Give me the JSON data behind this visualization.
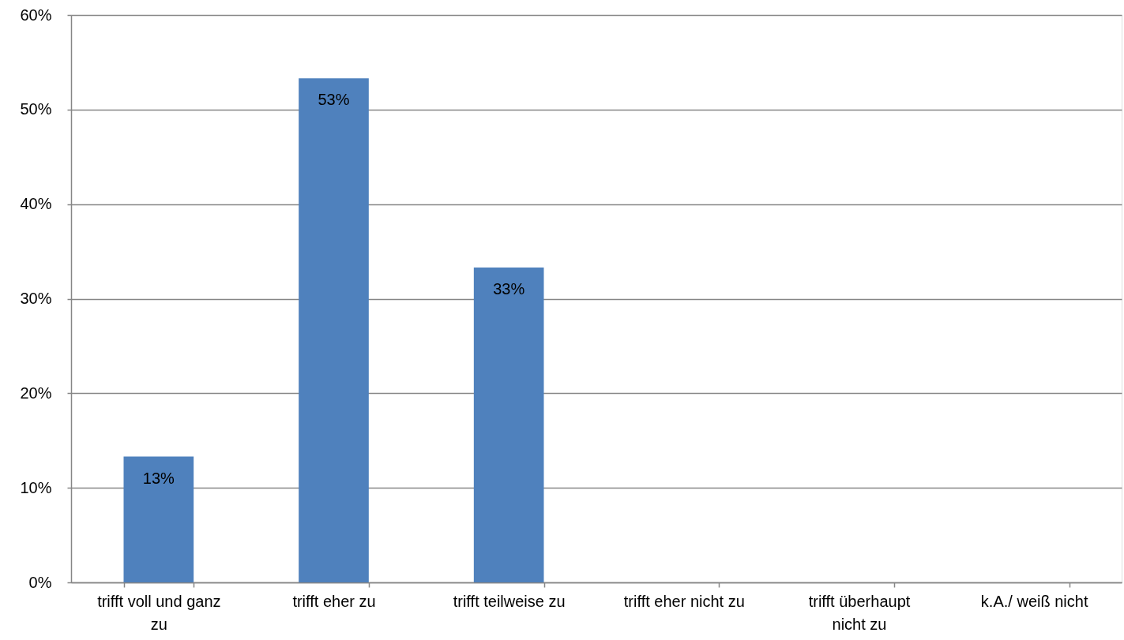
{
  "chart_data": {
    "type": "bar",
    "categories": [
      "trifft voll und ganz zu",
      "trifft eher zu",
      "trifft teilweise zu",
      "trifft eher nicht zu",
      "trifft überhaupt nicht zu",
      "k.A./ weiß nicht"
    ],
    "values": [
      13.3,
      53.3,
      33.3,
      null,
      null,
      null
    ],
    "value_labels": [
      "13%",
      "53%",
      "33%",
      null,
      null,
      null
    ],
    "color": "#4f81bd",
    "ylim": [
      0,
      60
    ],
    "yticks": [
      {
        "value": 0,
        "label": "0%"
      },
      {
        "value": 10,
        "label": "10%"
      },
      {
        "value": 20,
        "label": "20%"
      },
      {
        "value": 30,
        "label": "30%"
      },
      {
        "value": 40,
        "label": "40%"
      },
      {
        "value": 50,
        "label": "50%"
      },
      {
        "value": 60,
        "label": "60%"
      }
    ],
    "grid": "y"
  }
}
